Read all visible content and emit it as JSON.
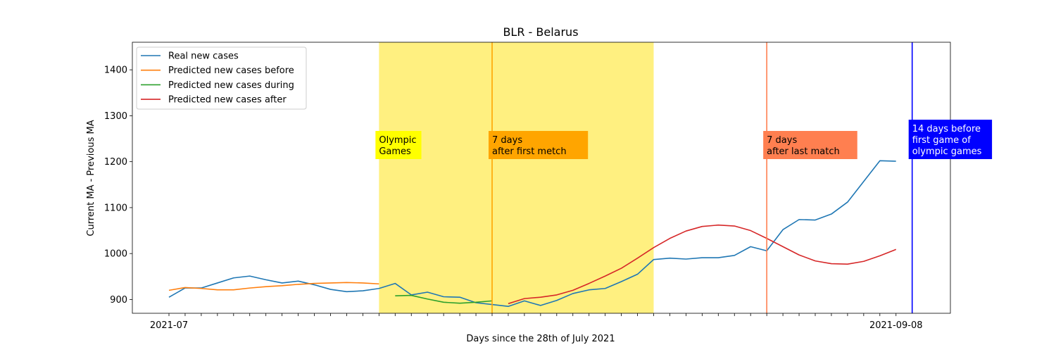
{
  "chart_data": {
    "type": "line",
    "title": "BLR - Belarus",
    "xlabel": "Days since the 28th of July 2021",
    "ylabel": "Current MA - Previous MA",
    "ylim": [
      870,
      1460
    ],
    "yticks": [
      900,
      1000,
      1100,
      1200,
      1300,
      1400
    ],
    "x_first_label": "2021-07",
    "x_last_label": "2021-09-08",
    "x_count": 46,
    "legend_position": "top-left",
    "series": [
      {
        "name": "Real new cases",
        "color": "#1f77b4",
        "start": 0,
        "values": [
          905,
          925,
          925,
          936,
          947,
          951,
          943,
          936,
          940,
          932,
          922,
          917,
          919,
          924,
          935,
          910,
          916,
          906,
          905,
          893,
          889,
          885,
          897,
          887,
          898,
          913,
          921,
          924,
          939,
          955,
          987,
          990,
          988,
          991,
          991,
          996,
          1015,
          1006,
          1052,
          1074,
          1073,
          1086,
          1112,
          1157,
          1202,
          1201
        ]
      },
      {
        "name": "Predicted new cases before",
        "color": "#ff7f0e",
        "start": 0,
        "values": [
          920,
          926,
          924,
          921,
          921,
          925,
          928,
          930,
          933,
          935,
          936,
          937,
          936,
          934
        ]
      },
      {
        "name": "Predicted new cases during",
        "color": "#2ca02c",
        "start": 14,
        "values": [
          908,
          909,
          901,
          894,
          892,
          894,
          897
        ]
      },
      {
        "name": "Predicted new cases after",
        "color": "#d62728",
        "start": 21,
        "values": [
          891,
          902,
          905,
          910,
          920,
          935,
          951,
          968,
          990,
          1013,
          1033,
          1049,
          1059,
          1062,
          1060,
          1050,
          1033,
          1015,
          997,
          984,
          978,
          977,
          983,
          995,
          1009
        ]
      }
    ],
    "span": {
      "start": 13,
      "end": 30,
      "color": "#fff080"
    },
    "vlines": [
      {
        "x": 20,
        "color": "#ffa500"
      },
      {
        "x": 37,
        "color": "#ff7f50"
      },
      {
        "x": 46,
        "color": "#0000ff"
      }
    ],
    "annotations": [
      {
        "x": 13,
        "lines": [
          "Olympic",
          "Games"
        ],
        "bg": "#ffff00",
        "fg": "#000000"
      },
      {
        "x": 20,
        "lines": [
          "7 days",
          "after first metch"
        ],
        "bg": "#ffa500",
        "fg": "#000000"
      },
      {
        "x": 37,
        "lines": [
          "7 days",
          "after last match"
        ],
        "bg": "#ff7f50",
        "fg": "#000000"
      },
      {
        "x": 46,
        "lines": [
          "14 days before",
          "first game of",
          "olympic games"
        ],
        "bg": "#0000ff",
        "fg": "#ffffff"
      }
    ]
  }
}
